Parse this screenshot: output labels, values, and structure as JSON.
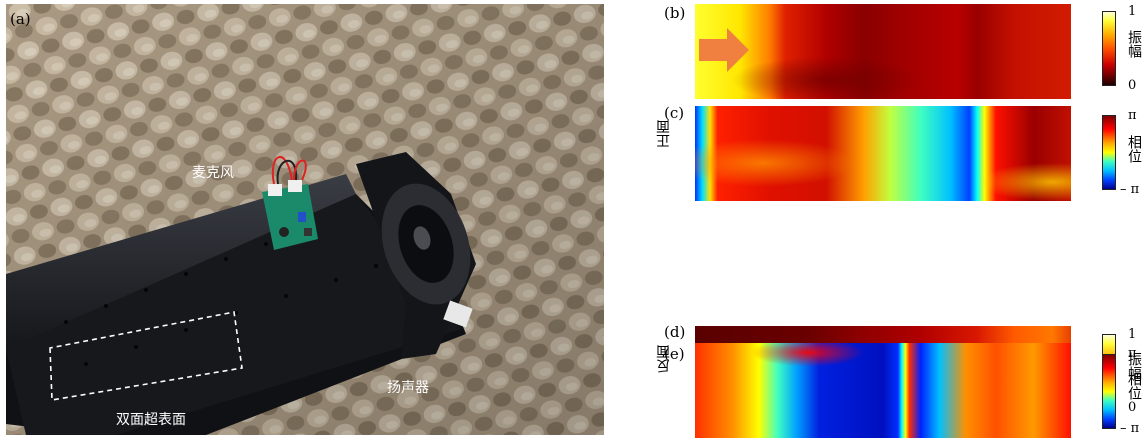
{
  "panel_labels": {
    "a": "(a)",
    "b": "(b)",
    "c": "(c)",
    "d": "(d)",
    "e": "(e)"
  },
  "photo": {
    "microphone_label": "麦克风",
    "speaker_label": "扬声器",
    "metasurface_label": "双面超表面"
  },
  "rows": {
    "front_label": "正面",
    "back_label": "反面"
  },
  "amplitude_colorbar": {
    "label": "振幅",
    "max_tick": "1",
    "min_tick": "0"
  },
  "phase_colorbar": {
    "label": "相位",
    "max_tick": "π",
    "min_tick": "– π"
  },
  "colors": {
    "arrow": "#f08040"
  }
}
